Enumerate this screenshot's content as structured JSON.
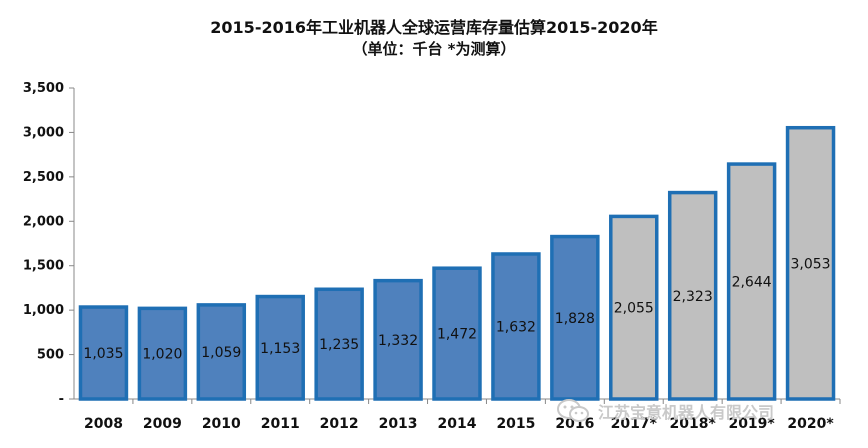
{
  "chart_data": {
    "type": "bar",
    "title": "2015-2016年工业机器人全球运营库存量估算2015-2020年",
    "subtitle": "（单位：千台   *为测算）",
    "categories": [
      "2008",
      "2009",
      "2010",
      "2011",
      "2012",
      "2013",
      "2014",
      "2015",
      "2016",
      "2017*",
      "2018*",
      "2019*",
      "2020*"
    ],
    "values": [
      1035,
      1020,
      1059,
      1153,
      1235,
      1332,
      1472,
      1632,
      1828,
      2055,
      2323,
      2644,
      3053
    ],
    "value_labels": [
      "1,035",
      "1,020",
      "1,059",
      "1,153",
      "1,235",
      "1,332",
      "1,472",
      "1,632",
      "1,828",
      "2,055",
      "2,323",
      "2,644",
      "3,053"
    ],
    "estimated": [
      false,
      false,
      false,
      false,
      false,
      false,
      false,
      false,
      false,
      true,
      true,
      true,
      true
    ],
    "yticks": [
      0,
      500,
      1000,
      1500,
      2000,
      2500,
      3000,
      3500
    ],
    "ytick_labels": [
      "-",
      "500",
      "1,000",
      "1,500",
      "2,000",
      "2,500",
      "3,000",
      "3,500"
    ],
    "ylim": [
      0,
      3500
    ],
    "grid": false,
    "colors": {
      "actual_fill": "#4f81bd",
      "estimated_fill": "#bfbfbf",
      "bar_border": "#1f6fb4"
    }
  },
  "watermark": {
    "text": "江苏宝意机器人有限公司",
    "icon": "wechat-icon"
  }
}
